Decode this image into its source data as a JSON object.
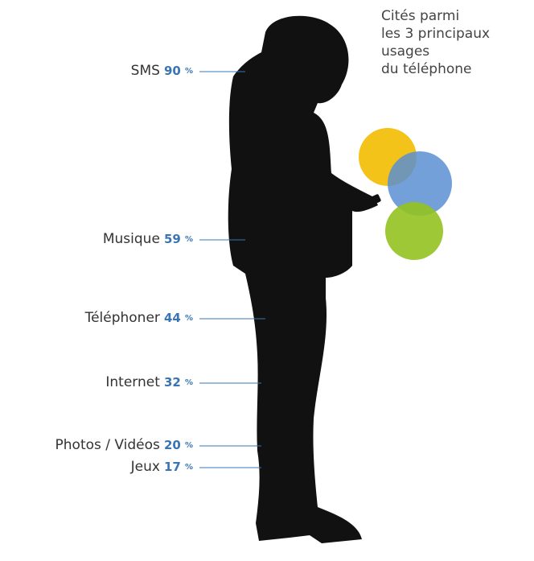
{
  "caption": [
    "Cités parmi",
    "les 3 principaux",
    "usages",
    "du téléphone"
  ],
  "unit": "%",
  "items": [
    {
      "label": "SMS",
      "value": 90
    },
    {
      "label": "Musique",
      "value": 59
    },
    {
      "label": "Téléphoner",
      "value": 44
    },
    {
      "label": "Internet",
      "value": 32
    },
    {
      "label": "Photos / Vidéos",
      "value": 20
    },
    {
      "label": "Jeux",
      "value": 17
    }
  ]
}
